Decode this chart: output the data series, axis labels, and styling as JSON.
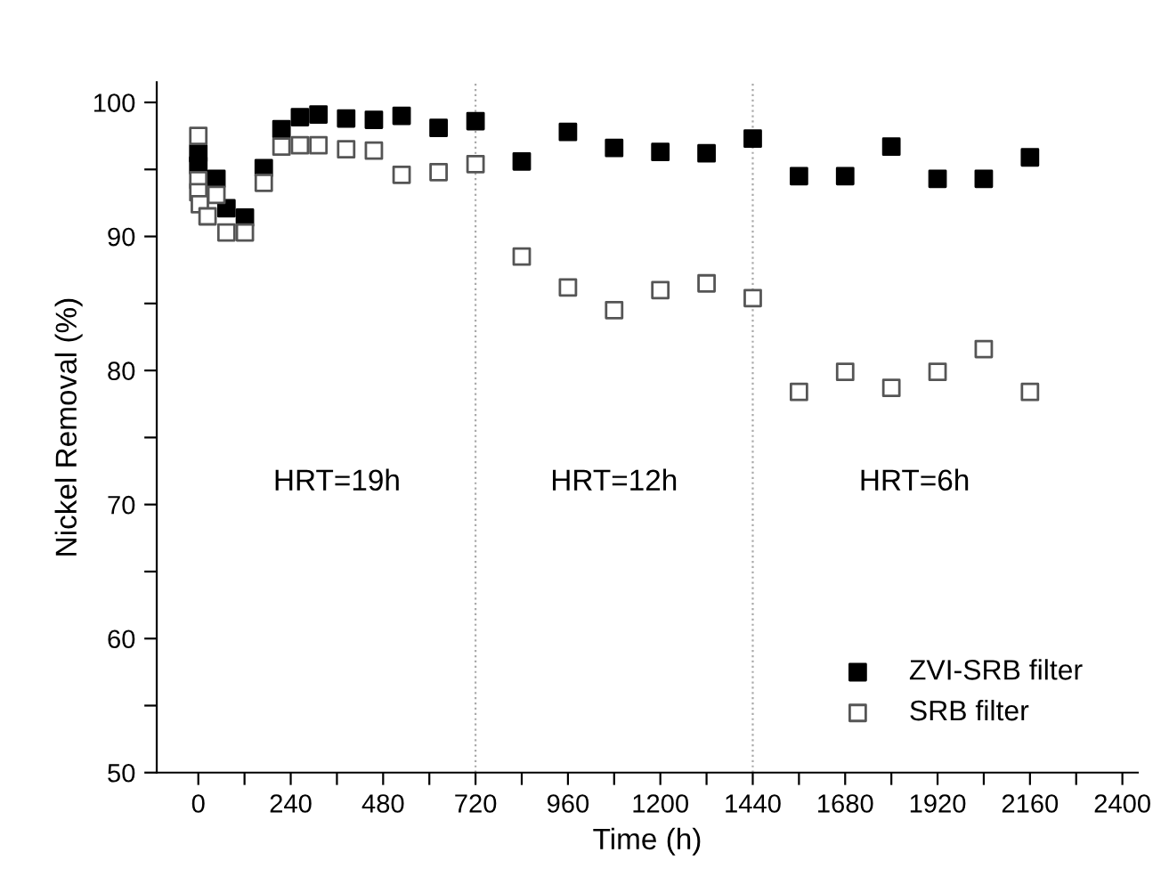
{
  "chart_data": {
    "type": "scatter",
    "xlabel": "Time (h)",
    "ylabel": "Nickel Removal (%)",
    "xlim": [
      -108,
      2440
    ],
    "ylim": [
      50,
      101.5
    ],
    "xticks": [
      0,
      {
        "value": 120,
        "label": null
      },
      240,
      {
        "value": 360,
        "label": null
      },
      480,
      {
        "value": 600,
        "label": null
      },
      720,
      {
        "value": 840,
        "label": null
      },
      960,
      {
        "value": 1080,
        "label": null
      },
      1200,
      {
        "value": 1320,
        "label": null
      },
      1440,
      {
        "value": 1560,
        "label": null
      },
      1680,
      {
        "value": 1800,
        "label": null
      },
      1920,
      {
        "value": 2040,
        "label": null
      },
      2160,
      {
        "value": 2280,
        "label": null
      },
      2400
    ],
    "yticks": [
      50,
      {
        "value": 55,
        "label": null
      },
      60,
      {
        "value": 65,
        "label": null
      },
      70,
      {
        "value": 75,
        "label": null
      },
      80,
      {
        "value": 85,
        "label": null
      },
      90,
      {
        "value": 95,
        "label": null
      },
      100
    ],
    "grid": false,
    "legend": "bottom right",
    "marker": "square",
    "series": [
      {
        "name": "ZVI-SRB filter",
        "color": "#000000",
        "x": [
          0,
          0,
          47,
          73,
          121,
          170,
          216,
          264,
          312,
          384,
          456,
          528,
          624,
          720,
          840,
          960,
          1080,
          1200,
          1320,
          1440,
          1560,
          1680,
          1800,
          1920,
          2040,
          2160
        ],
        "values": [
          96.2,
          95.3,
          94.3,
          92.1,
          91.4,
          95.1,
          98.0,
          98.9,
          99.1,
          98.8,
          98.7,
          99.0,
          98.1,
          98.6,
          95.6,
          97.8,
          96.6,
          96.3,
          96.2,
          97.3,
          94.5,
          94.5,
          96.7,
          94.3,
          94.3,
          95.9
        ]
      },
      {
        "name": "SRB filter",
        "color": "#555555",
        "x": [
          0,
          0,
          0,
          4,
          10,
          24,
          47,
          73,
          121,
          170,
          216,
          264,
          312,
          384,
          456,
          528,
          624,
          720,
          840,
          960,
          1080,
          1200,
          1320,
          1440,
          1560,
          1680,
          1800,
          1920,
          2040,
          2160
        ],
        "values": [
          97.5,
          94.2,
          93.3,
          92.4,
          null,
          91.5,
          93.1,
          90.3,
          90.3,
          94.0,
          96.7,
          96.8,
          96.8,
          96.5,
          96.4,
          94.6,
          94.8,
          95.4,
          88.5,
          86.2,
          84.5,
          86.0,
          86.5,
          85.4,
          78.4,
          79.9,
          78.7,
          79.9,
          81.6,
          78.4
        ]
      }
    ],
    "ref_lines": [
      {
        "axis": "x",
        "value": 720,
        "label": null,
        "color": "#aaaaaa",
        "line_style": "dotted"
      },
      {
        "axis": "x",
        "value": 1440,
        "label": null,
        "color": "#aaaaaa",
        "line_style": "dotted"
      }
    ],
    "annotations": [
      "HRT=19h",
      "HRT=12h",
      "HRT=6h"
    ]
  }
}
